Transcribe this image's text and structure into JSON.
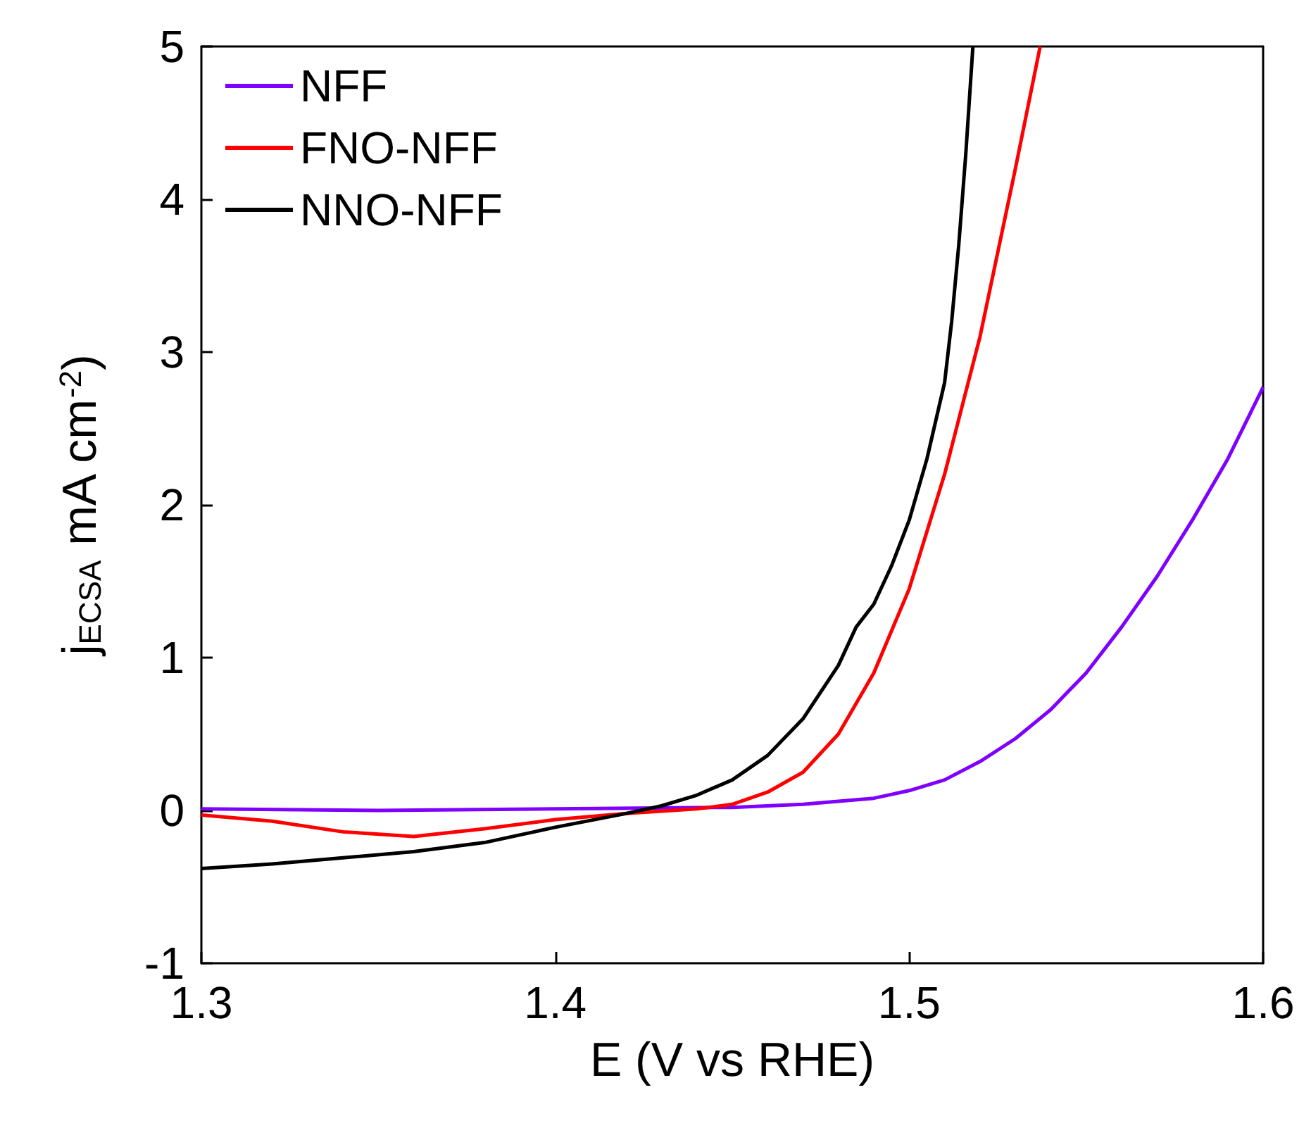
{
  "chart_data": {
    "type": "line",
    "xlabel": "E (V vs RHE)",
    "ylabel": "j$_{ECSA}$ mA cm$^{-2}$)",
    "xlim": [
      1.3,
      1.6
    ],
    "xticks": [
      1.3,
      1.4,
      1.5,
      1.6
    ],
    "ylim": [
      -1,
      5
    ],
    "yticks": [
      -1,
      0,
      1,
      2,
      3,
      4,
      5
    ],
    "grid": false,
    "legend": "top left",
    "marker": "none",
    "line_style": "solid",
    "series": [
      {
        "name": "NFF",
        "color": "#7f00ff",
        "x": [
          1.3,
          1.35,
          1.4,
          1.45,
          1.47,
          1.49,
          1.5,
          1.51,
          1.52,
          1.53,
          1.54,
          1.55,
          1.56,
          1.57,
          1.58,
          1.59,
          1.6
        ],
        "values": [
          0.01,
          0.0,
          0.01,
          0.02,
          0.04,
          0.08,
          0.13,
          0.2,
          0.32,
          0.47,
          0.66,
          0.9,
          1.2,
          1.53,
          1.9,
          2.3,
          2.77
        ]
      },
      {
        "name": "FNO-NFF",
        "color": "#ff0000",
        "x": [
          1.3,
          1.32,
          1.34,
          1.36,
          1.38,
          1.4,
          1.42,
          1.44,
          1.45,
          1.46,
          1.47,
          1.48,
          1.49,
          1.5,
          1.51,
          1.52,
          1.53,
          1.537
        ],
        "values": [
          -0.03,
          -0.07,
          -0.14,
          -0.17,
          -0.12,
          -0.06,
          -0.02,
          0.01,
          0.04,
          0.12,
          0.25,
          0.5,
          0.9,
          1.45,
          2.2,
          3.1,
          4.2,
          5.0
        ]
      },
      {
        "name": "NNO-NFF",
        "color": "#000000",
        "x": [
          1.3,
          1.32,
          1.34,
          1.36,
          1.38,
          1.4,
          1.42,
          1.43,
          1.44,
          1.45,
          1.46,
          1.47,
          1.48,
          1.485,
          1.49,
          1.495,
          1.5,
          1.505,
          1.51,
          1.512,
          1.514,
          1.516,
          1.518
        ],
        "values": [
          -0.38,
          -0.35,
          -0.31,
          -0.27,
          -0.21,
          -0.11,
          -0.02,
          0.03,
          0.1,
          0.2,
          0.36,
          0.6,
          0.95,
          1.2,
          1.35,
          1.6,
          1.9,
          2.3,
          2.8,
          3.2,
          3.7,
          4.3,
          5.0
        ]
      }
    ]
  }
}
